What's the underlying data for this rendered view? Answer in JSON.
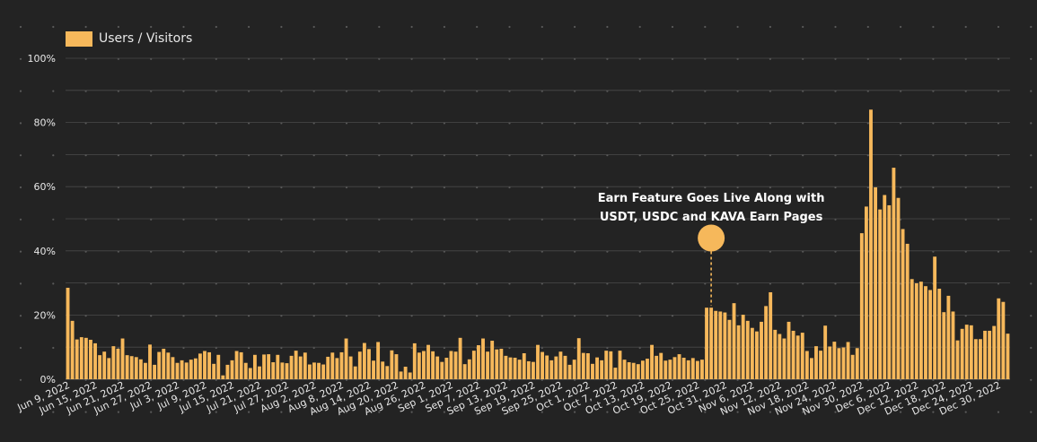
{
  "chart_data": {
    "type": "bar",
    "legend": {
      "label": "Users / Visitors",
      "position": "top-left"
    },
    "colors": {
      "background": "#232323",
      "bar": "#f6b85b",
      "grid": "#4a4a4a",
      "dot": "#5a5a5a",
      "text": "#e8e8e8"
    },
    "ylim": [
      0,
      100
    ],
    "y_ticks": [
      0,
      20,
      40,
      60,
      80,
      100
    ],
    "y_tick_labels": [
      "0%",
      "20%",
      "40%",
      "60%",
      "80%",
      "100%"
    ],
    "grid": true,
    "start_date": "2022-06-09",
    "categories_step_days": 1,
    "x_tick_labels": [
      "Jun 9, 2022",
      "Jun 15, 2022",
      "Jun 21, 2022",
      "Jun 27, 2022",
      "Jul 3, 2022",
      "Jul 9, 2022",
      "Jul 15, 2022",
      "Jul 21, 2022",
      "Jul 27, 2022",
      "Aug 2, 2022",
      "Aug 8, 2022",
      "Aug 14, 2022",
      "Aug 20, 2022",
      "Aug 26, 2022",
      "Sep 1, 2022",
      "Sep 7, 2022",
      "Sep 13, 2022",
      "Sep 19, 2022",
      "Sep 25, 2022",
      "Oct 1, 2022",
      "Oct 7, 2022",
      "Oct 13, 2022",
      "Oct 19, 2022",
      "Oct 25, 2022",
      "Oct 31, 2022",
      "Nov 6, 2022",
      "Nov 12, 2022",
      "Nov 18, 2022",
      "Nov 24, 2022",
      "Nov 30, 2022",
      "Dec 6, 2022",
      "Dec 12, 2022",
      "Dec 18, 2022",
      "Dec 24, 2022",
      "Dec 30, 2022"
    ],
    "values": [
      28.5,
      18.2,
      12.4,
      13.1,
      12.9,
      12.3,
      11.2,
      7.5,
      8.6,
      6.6,
      10.3,
      9.5,
      12.7,
      7.5,
      7.2,
      6.9,
      6.2,
      5.1,
      10.8,
      4.5,
      8.5,
      9.5,
      8.3,
      6.9,
      5.1,
      5.9,
      5.2,
      6.1,
      6.5,
      8.0,
      8.8,
      8.4,
      4.8,
      7.6,
      1.2,
      4.5,
      5.9,
      8.8,
      8.4,
      5.1,
      3.5,
      7.6,
      4.0,
      7.7,
      7.8,
      5.3,
      7.6,
      5.2,
      5.0,
      7.3,
      8.9,
      7.1,
      8.3,
      4.6,
      5.2,
      5.1,
      4.6,
      7.0,
      8.3,
      6.6,
      8.4,
      12.7,
      7.1,
      4.0,
      8.6,
      11.3,
      9.4,
      5.8,
      11.6,
      5.5,
      4.1,
      9.0,
      7.8,
      2.4,
      3.9,
      2.1,
      11.2,
      8.3,
      8.8,
      10.7,
      8.7,
      7.1,
      5.4,
      6.7,
      8.8,
      8.6,
      12.9,
      4.7,
      6.2,
      8.9,
      10.6,
      12.7,
      8.6,
      12.0,
      9.3,
      9.5,
      7.3,
      6.8,
      6.7,
      6.1,
      8.1,
      5.6,
      5.4,
      10.7,
      8.5,
      7.4,
      5.9,
      7.1,
      8.6,
      7.3,
      4.5,
      6.1,
      12.8,
      8.2,
      8.1,
      4.8,
      6.8,
      5.9,
      8.9,
      8.7,
      3.6,
      8.9,
      6.1,
      5.3,
      5.1,
      4.7,
      5.8,
      6.4,
      10.7,
      7.3,
      8.2,
      5.8,
      6.1,
      6.9,
      7.8,
      6.7,
      5.9,
      6.6,
      5.7,
      6.1,
      22.3,
      22.3,
      21.3,
      21.1,
      20.8,
      18.5,
      23.7,
      16.8,
      20.1,
      18.2,
      16.0,
      14.9,
      17.9,
      22.8,
      27.1,
      15.4,
      14.1,
      12.7,
      17.9,
      15.1,
      13.6,
      14.5,
      8.8,
      6.6,
      10.3,
      8.9,
      16.7,
      10.2,
      11.7,
      9.7,
      9.9,
      11.6,
      7.6,
      9.7,
      45.5,
      53.8,
      84.0,
      59.8,
      52.9,
      57.4,
      54.2,
      65.9,
      56.5,
      46.8,
      42.2,
      31.2,
      29.9,
      30.4,
      29.0,
      27.8,
      38.2,
      28.2,
      20.9,
      26.0,
      21.1,
      12.1,
      15.7,
      17.0,
      16.8,
      12.5,
      12.5,
      15.1,
      15.1,
      16.6,
      25.2,
      24.1,
      14.2
    ],
    "annotation": {
      "lines": [
        "Earn Feature Goes Live Along with",
        "USDT, USDC and KAVA Earn Pages"
      ],
      "x": "Oct 28, 2022",
      "y": 44
    }
  }
}
